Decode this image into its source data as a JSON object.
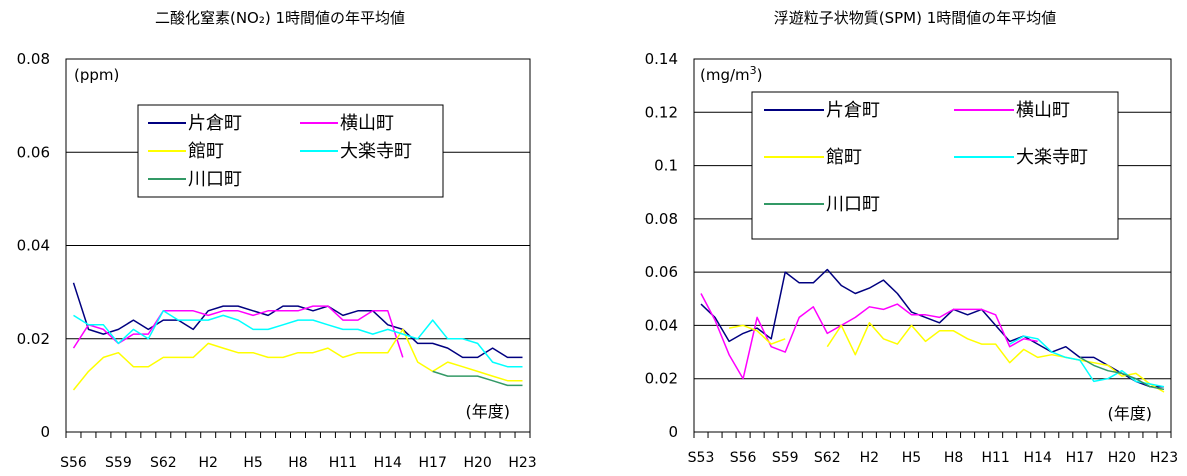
{
  "chart_data": [
    {
      "type": "line",
      "title": "二酸化窒素(NO₂) 1時間値の年平均値",
      "ylabel": "(ppm)",
      "xlabel": "(年度)",
      "ylim": [
        0,
        0.08
      ],
      "yticks": [
        0,
        0.02,
        0.04,
        0.06,
        0.08
      ],
      "ytick_labels": [
        "0",
        "0.02",
        "0.04",
        "0.06",
        "0.08"
      ],
      "grid": true,
      "legend_position": "top-center",
      "x_labels": [
        "S56",
        "S59",
        "S62",
        "H2",
        "H5",
        "H8",
        "H11",
        "H14",
        "H17",
        "H20",
        "H23"
      ],
      "x_label_every": 3,
      "x_years": [
        "S56",
        "S57",
        "S58",
        "S59",
        "S60",
        "S61",
        "S62",
        "S63",
        "H1",
        "H2",
        "H3",
        "H4",
        "H5",
        "H6",
        "H7",
        "H8",
        "H9",
        "H10",
        "H11",
        "H12",
        "H13",
        "H14",
        "H15",
        "H16",
        "H17",
        "H18",
        "H19",
        "H20",
        "H21",
        "H22",
        "H23"
      ],
      "series": [
        {
          "name": "片倉町",
          "color": "#000080",
          "values": [
            0.032,
            0.022,
            0.021,
            0.022,
            0.024,
            0.022,
            0.024,
            0.024,
            0.022,
            0.026,
            0.027,
            0.027,
            0.026,
            0.025,
            0.027,
            0.027,
            0.026,
            0.027,
            0.025,
            0.026,
            0.026,
            0.023,
            0.022,
            0.019,
            0.019,
            0.018,
            0.016,
            0.016,
            0.018,
            0.016,
            0.016
          ]
        },
        {
          "name": "横山町",
          "color": "#ff00ff",
          "values": [
            0.018,
            0.023,
            0.022,
            0.019,
            0.021,
            0.021,
            0.026,
            0.026,
            0.026,
            0.025,
            0.026,
            0.026,
            0.025,
            0.026,
            0.026,
            0.026,
            0.027,
            0.027,
            0.024,
            0.024,
            0.026,
            0.026,
            0.016,
            null,
            null,
            null,
            null,
            null,
            null,
            null,
            null
          ]
        },
        {
          "name": "館町",
          "color": "#ffff00",
          "values": [
            0.009,
            0.013,
            0.016,
            0.017,
            0.014,
            0.014,
            0.016,
            0.016,
            0.016,
            0.019,
            0.018,
            0.017,
            0.017,
            0.016,
            0.016,
            0.017,
            0.017,
            0.018,
            0.016,
            0.017,
            0.017,
            0.017,
            0.022,
            0.015,
            0.013,
            0.015,
            0.014,
            0.013,
            0.012,
            0.011,
            0.011
          ]
        },
        {
          "name": "大楽寺町",
          "color": "#00ffff",
          "values": [
            0.025,
            0.023,
            0.023,
            0.019,
            0.022,
            0.02,
            0.026,
            0.024,
            0.024,
            0.024,
            0.025,
            0.024,
            0.022,
            0.022,
            0.023,
            0.024,
            0.024,
            0.023,
            0.022,
            0.022,
            0.021,
            0.022,
            0.021,
            0.02,
            0.024,
            0.02,
            0.02,
            0.019,
            0.015,
            0.014,
            0.014
          ]
        },
        {
          "name": "川口町",
          "color": "#339966",
          "values": [
            null,
            null,
            null,
            null,
            null,
            null,
            null,
            null,
            null,
            null,
            null,
            null,
            null,
            null,
            null,
            null,
            null,
            null,
            null,
            null,
            null,
            null,
            null,
            null,
            0.013,
            0.012,
            0.012,
            0.012,
            0.011,
            0.01,
            0.01
          ]
        }
      ]
    },
    {
      "type": "line",
      "title": "浮遊粒子状物質(SPM) 1時間値の年平均値",
      "ylabel": "(mg/m³)",
      "xlabel": "(年度)",
      "ylim": [
        0,
        0.14
      ],
      "yticks": [
        0,
        0.02,
        0.04,
        0.06,
        0.08,
        0.1,
        0.12,
        0.14
      ],
      "ytick_labels": [
        "0",
        "0.02",
        "0.04",
        "0.06",
        "0.08",
        "0.1",
        "0.12",
        "0.14"
      ],
      "grid": true,
      "legend_position": "top-center",
      "x_labels": [
        "S53",
        "S56",
        "S59",
        "S62",
        "H2",
        "H5",
        "H8",
        "H11",
        "H14",
        "H17",
        "H20",
        "H23"
      ],
      "x_label_every": 3,
      "x_years": [
        "S53",
        "S54",
        "S55",
        "S56",
        "S57",
        "S58",
        "S59",
        "S60",
        "S61",
        "S62",
        "S63",
        "H1",
        "H2",
        "H3",
        "H4",
        "H5",
        "H6",
        "H7",
        "H8",
        "H9",
        "H10",
        "H11",
        "H12",
        "H13",
        "H14",
        "H15",
        "H16",
        "H17",
        "H18",
        "H19",
        "H20",
        "H21",
        "H22",
        "H23"
      ],
      "series": [
        {
          "name": "片倉町",
          "color": "#000080",
          "values": [
            0.048,
            0.043,
            0.034,
            0.037,
            0.039,
            0.035,
            0.06,
            0.056,
            0.056,
            0.061,
            0.055,
            0.052,
            0.054,
            0.057,
            0.052,
            0.045,
            0.043,
            0.041,
            0.046,
            0.044,
            0.046,
            0.04,
            0.034,
            0.036,
            0.033,
            0.03,
            0.032,
            0.028,
            0.028,
            0.025,
            0.022,
            0.019,
            0.017,
            0.017
          ]
        },
        {
          "name": "横山町",
          "color": "#ff00ff",
          "values": [
            0.052,
            0.042,
            0.029,
            0.02,
            0.043,
            0.032,
            0.03,
            0.043,
            0.047,
            0.037,
            0.04,
            0.043,
            0.047,
            0.046,
            0.048,
            0.044,
            0.044,
            0.043,
            0.046,
            0.046,
            0.046,
            0.044,
            0.032,
            0.035,
            0.034,
            null,
            null,
            null,
            null,
            null,
            null,
            null,
            null,
            null
          ]
        },
        {
          "name": "館町",
          "color": "#ffff00",
          "values": [
            null,
            null,
            0.039,
            0.04,
            0.038,
            0.033,
            0.035,
            null,
            null,
            0.032,
            0.04,
            0.029,
            0.041,
            0.035,
            0.033,
            0.04,
            0.034,
            0.038,
            0.038,
            0.035,
            0.033,
            0.033,
            0.026,
            0.031,
            0.028,
            0.029,
            0.028,
            0.027,
            0.026,
            0.025,
            0.021,
            0.022,
            0.018,
            0.015
          ]
        },
        {
          "name": "大楽寺町",
          "color": "#00ffff",
          "values": [
            null,
            null,
            null,
            null,
            null,
            null,
            null,
            null,
            null,
            null,
            null,
            null,
            null,
            null,
            null,
            null,
            null,
            null,
            null,
            null,
            null,
            null,
            0.033,
            0.036,
            0.035,
            0.03,
            0.028,
            0.027,
            0.019,
            0.02,
            0.023,
            0.019,
            0.018,
            0.017
          ]
        },
        {
          "name": "川口町",
          "color": "#339966",
          "values": [
            null,
            null,
            null,
            null,
            null,
            null,
            null,
            null,
            null,
            null,
            null,
            null,
            null,
            null,
            null,
            null,
            null,
            null,
            null,
            null,
            null,
            null,
            null,
            null,
            null,
            null,
            null,
            0.028,
            0.025,
            0.023,
            0.022,
            0.02,
            0.017,
            0.016
          ]
        }
      ]
    }
  ]
}
